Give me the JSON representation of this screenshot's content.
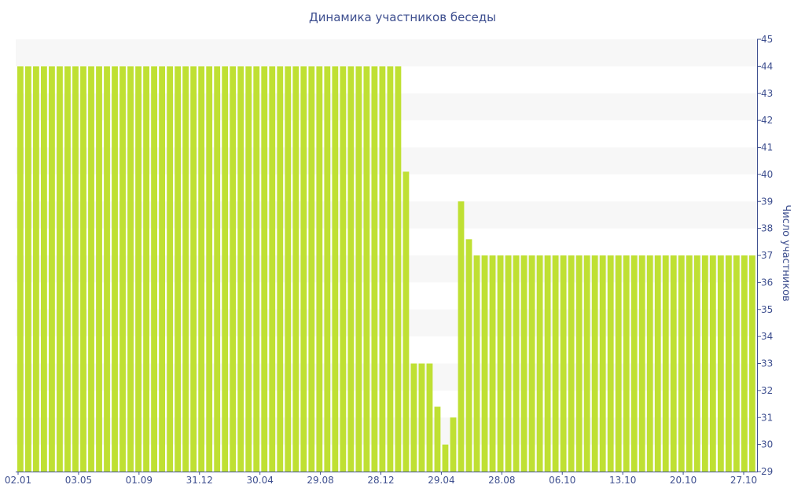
{
  "chart_data": {
    "type": "bar",
    "title": "Динамика участников беседы",
    "ylabel": "Число участников",
    "xlabel": "",
    "ylim": [
      29,
      45
    ],
    "y_ticks": [
      29,
      30,
      31,
      32,
      33,
      34,
      35,
      36,
      37,
      38,
      39,
      40,
      41,
      42,
      43,
      44,
      45
    ],
    "x_tick_labels": [
      "02.01",
      "03.05",
      "01.09",
      "31.12",
      "30.04",
      "29.08",
      "28.12",
      "29.04",
      "28.08",
      "06.10",
      "13.10",
      "20.10",
      "27.10"
    ],
    "y_axis_position": "right",
    "grid": "alternating horizontal bands",
    "colors": {
      "bar": "#bfe033",
      "band": "#f7f7f7",
      "text": "#3e4f8f",
      "axis": "#3e4f8f"
    },
    "values": [
      44,
      44,
      44,
      44,
      44,
      44,
      44,
      44,
      44,
      44,
      44,
      44,
      44,
      44,
      44,
      44,
      44,
      44,
      44,
      44,
      44,
      44,
      44,
      44,
      44,
      44,
      44,
      44,
      44,
      44,
      44,
      44,
      44,
      44,
      44,
      44,
      44,
      44,
      44,
      44,
      44,
      44,
      44,
      44,
      44,
      44,
      44,
      44,
      44,
      40.1,
      33,
      33,
      33,
      31.4,
      30,
      31,
      39,
      37.6,
      37,
      37,
      37,
      37,
      37,
      37,
      37,
      37,
      37,
      37,
      37,
      37,
      37,
      37,
      37,
      37,
      37,
      37,
      37,
      37,
      37,
      37,
      37,
      37,
      37,
      37,
      37,
      37,
      37,
      37,
      37,
      37,
      37,
      37,
      37,
      37
    ]
  }
}
